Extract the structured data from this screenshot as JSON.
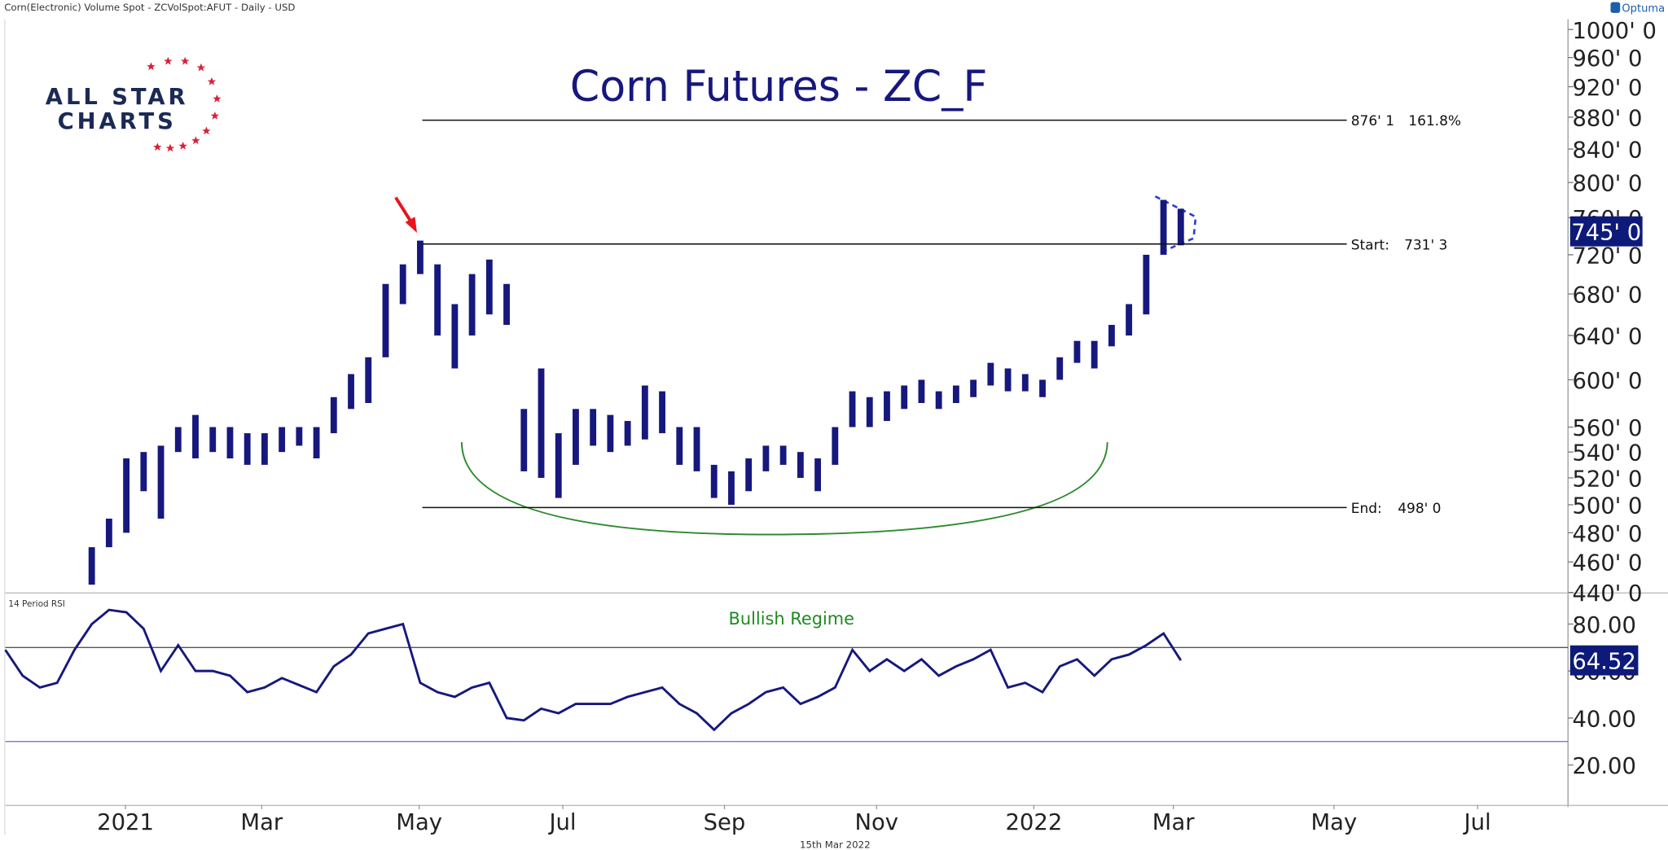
{
  "header": "Corn(Electronic) Volume Spot - ZCVolSpot:AFUT - Daily - USD",
  "brand": "Optuma",
  "logo": [
    "ALL STAR",
    "CHARTS"
  ],
  "footer_date": "15th Mar 2022",
  "chart_data": [
    {
      "type": "ohlc",
      "title": "Corn Futures - ZC_F",
      "color": "#16187e",
      "log_scale": true,
      "categories": [
        null,
        null,
        null,
        null,
        null,
        null,
        null,
        null,
        null,
        null,
        null,
        null,
        null,
        null,
        null,
        null,
        null,
        null,
        null,
        null,
        null,
        null,
        null,
        null,
        null,
        null,
        null,
        null,
        null,
        null,
        null,
        null,
        null,
        null,
        null,
        null,
        null,
        null,
        null,
        null,
        null,
        null,
        null,
        null,
        null,
        null,
        null,
        null,
        null,
        null,
        null,
        null,
        null,
        null,
        null,
        null,
        null,
        null,
        null,
        null,
        null,
        null,
        null,
        null,
        null,
        null,
        null,
        null,
        null
      ],
      "low": [
        null,
        null,
        null,
        null,
        null,
        445,
        470,
        480,
        510,
        490,
        540,
        535,
        540,
        535,
        530,
        530,
        540,
        545,
        535,
        555,
        575,
        580,
        620,
        670,
        700,
        640,
        610,
        640,
        660,
        650,
        525,
        520,
        505,
        530,
        545,
        540,
        545,
        550,
        555,
        530,
        525,
        505,
        500,
        510,
        525,
        530,
        520,
        510,
        530,
        560,
        560,
        565,
        575,
        580,
        575,
        580,
        585,
        595,
        590,
        590,
        585,
        600,
        615,
        610,
        630,
        640,
        660,
        720,
        730
      ],
      "high": [
        null,
        null,
        null,
        null,
        null,
        470,
        490,
        535,
        540,
        545,
        560,
        570,
        560,
        560,
        555,
        555,
        560,
        560,
        560,
        585,
        605,
        620,
        690,
        710,
        735,
        710,
        670,
        700,
        715,
        690,
        575,
        610,
        555,
        575,
        575,
        570,
        565,
        595,
        590,
        560,
        560,
        530,
        525,
        535,
        545,
        545,
        540,
        535,
        560,
        590,
        585,
        590,
        595,
        600,
        590,
        595,
        600,
        615,
        610,
        605,
        600,
        620,
        635,
        635,
        650,
        670,
        720,
        780,
        770
      ],
      "xlim": [
        0,
        90.4
      ],
      "ylim": [
        440,
        1015
      ],
      "yticks": [
        {
          "value": 1000,
          "label": "1000' 0"
        },
        {
          "value": 960,
          "label": "960' 0"
        },
        {
          "value": 920,
          "label": "920' 0"
        },
        {
          "value": 880,
          "label": "880' 0"
        },
        {
          "value": 840,
          "label": "840' 0"
        },
        {
          "value": 800,
          "label": "800' 0"
        },
        {
          "value": 760,
          "label": "760' 0"
        },
        {
          "value": 720,
          "label": "720' 0"
        },
        {
          "value": 680,
          "label": "680' 0"
        },
        {
          "value": 640,
          "label": "640' 0"
        },
        {
          "value": 600,
          "label": "600' 0"
        },
        {
          "value": 560,
          "label": "560' 0"
        },
        {
          "value": 540,
          "label": "540' 0"
        },
        {
          "value": 520,
          "label": "520' 0"
        },
        {
          "value": 500,
          "label": "500' 0"
        },
        {
          "value": 480,
          "label": "480' 0"
        },
        {
          "value": 460,
          "label": "460' 0"
        },
        {
          "value": 440,
          "label": "440' 0"
        }
      ],
      "levels": [
        {
          "value": 876.125,
          "label": "876' 1",
          "note": "161.8%"
        },
        {
          "value": 731.375,
          "label": "731' 3",
          "name": "Start:"
        },
        {
          "value": 498,
          "label": "498' 0",
          "name": "End:"
        }
      ],
      "last": {
        "value": 745,
        "label": "745' 0"
      }
    },
    {
      "type": "line",
      "title": "14 Period RSI",
      "annotation": "Bullish Regime",
      "color": "#16187e",
      "categories": [
        null,
        null,
        null,
        null,
        null,
        null,
        null,
        null,
        null,
        null,
        null,
        null,
        null,
        null,
        null,
        null,
        null,
        null,
        null,
        null,
        null,
        null,
        null,
        null,
        null,
        null,
        null,
        null,
        null,
        null,
        null,
        null,
        null,
        null,
        null,
        null,
        null,
        null,
        null,
        null,
        null,
        null,
        null,
        null,
        null,
        null,
        null,
        null,
        null,
        null,
        null,
        null,
        null,
        null,
        null,
        null,
        null,
        null,
        null,
        null,
        null,
        null,
        null,
        null,
        null,
        null,
        null,
        null,
        null
      ],
      "values": [
        69,
        58,
        53,
        55,
        69,
        80,
        86,
        85,
        78,
        60,
        71,
        60,
        60,
        58,
        51,
        53,
        57,
        54,
        51,
        62,
        67,
        76,
        78,
        80,
        55,
        51,
        49,
        53,
        55,
        40,
        39,
        44,
        42,
        46,
        46,
        46,
        49,
        51,
        53,
        46,
        42,
        35,
        42,
        46,
        51,
        53,
        46,
        49,
        53,
        69,
        60,
        65,
        60,
        65,
        58,
        62,
        65,
        69,
        53,
        55,
        51,
        62,
        65,
        58,
        65,
        67,
        71,
        76,
        64.52
      ],
      "xlim": [
        0,
        90.4
      ],
      "ylim": [
        3,
        93
      ],
      "yticks": [
        {
          "value": 80,
          "label": "80.00"
        },
        {
          "value": 60,
          "label": "60.00"
        },
        {
          "value": 40,
          "label": "40.00"
        },
        {
          "value": 20,
          "label": "20.00"
        }
      ],
      "hlines": [
        70,
        30
      ],
      "xticks": [
        {
          "value": 6.95,
          "label": "2021"
        },
        {
          "value": 14.83,
          "label": "Mar"
        },
        {
          "value": 23.94,
          "label": "May"
        },
        {
          "value": 32.25,
          "label": "Jul"
        },
        {
          "value": 41.6,
          "label": "Sep"
        },
        {
          "value": 50.4,
          "label": "Nov"
        },
        {
          "value": 59.5,
          "label": "2022"
        },
        {
          "value": 67.57,
          "label": "Mar"
        },
        {
          "value": 76.86,
          "label": "May"
        },
        {
          "value": 85.17,
          "label": "Jul"
        }
      ]
    }
  ]
}
